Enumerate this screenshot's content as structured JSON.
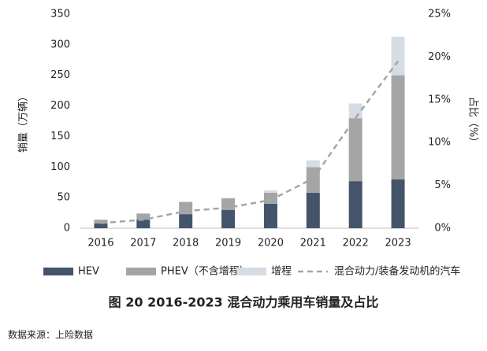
{
  "chart_data": {
    "type": "bar",
    "title": "图 20 2016-2023 混合动力乘用车销量及占比",
    "source": "数据来源：上险数据",
    "y_label": "销量（万辆）",
    "y2_label": "占比（%）",
    "categories": [
      "2016",
      "2017",
      "2018",
      "2019",
      "2020",
      "2021",
      "2022",
      "2023"
    ],
    "series": [
      {
        "name": "HEV",
        "type": "bar",
        "color": "#44546a",
        "values": [
          8,
          14,
          23,
          30,
          40,
          58,
          77,
          80
        ]
      },
      {
        "name": "PHEV（不含增程）",
        "type": "bar",
        "color": "#a5a5a5",
        "values": [
          6,
          10,
          20,
          19,
          18,
          42,
          103,
          170
        ]
      },
      {
        "name": "增程",
        "type": "bar",
        "color": "#d6dce4",
        "values": [
          0,
          0,
          0,
          0,
          4,
          11,
          24,
          63
        ]
      },
      {
        "name": "混合动力/装备发动机的汽车",
        "type": "line",
        "axis": "y2",
        "color": "#a5a5a5",
        "values": [
          0.6,
          1.0,
          2.0,
          2.4,
          3.3,
          5.8,
          12.9,
          19.5
        ]
      }
    ],
    "ylim": [
      0,
      350
    ],
    "yticks": [
      0,
      50,
      100,
      150,
      200,
      250,
      300,
      350
    ],
    "y2lim": [
      0,
      25
    ],
    "y2ticks": [
      {
        "value": 0,
        "label": "0%"
      },
      {
        "value": 5,
        "label": "5%"
      },
      {
        "value": 10,
        "label": "10%"
      },
      {
        "value": 15,
        "label": "15%"
      },
      {
        "value": 20,
        "label": "20%"
      },
      {
        "value": 25,
        "label": "25%"
      }
    ],
    "stacked": true,
    "grid": false
  }
}
